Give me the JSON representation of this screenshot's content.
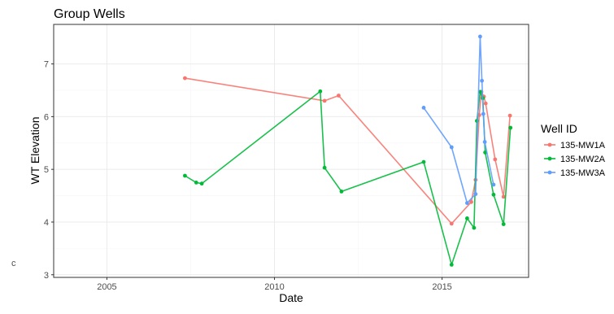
{
  "chart_data": {
    "type": "line",
    "title": "Group Wells",
    "xlabel": "Date",
    "ylabel": "WT Elevation",
    "xlim": [
      "2003-06-01",
      "2017-08-01"
    ],
    "ylim": [
      2.95,
      7.75
    ],
    "xticks": [
      "2005-01-01",
      "2010-01-01",
      "2015-01-01"
    ],
    "xtick_labels": [
      "2005",
      "2010",
      "2015"
    ],
    "yticks": [
      3,
      4,
      5,
      6,
      7
    ],
    "ytick_labels": [
      "3",
      "4",
      "5",
      "6",
      "7"
    ],
    "grid": true,
    "legend": {
      "title": "Well ID",
      "position": "right"
    },
    "series": [
      {
        "name": "135-MW1A",
        "color": "#F8766D",
        "points": [
          [
            "2007-05-01",
            6.73
          ],
          [
            "2011-07-01",
            6.3
          ],
          [
            "2011-12-01",
            6.4
          ],
          [
            "2015-04-15",
            3.97
          ],
          [
            "2015-11-15",
            4.38
          ],
          [
            "2016-01-01",
            4.8
          ],
          [
            "2016-02-10",
            6.03
          ],
          [
            "2016-03-05",
            6.47
          ],
          [
            "2016-04-01",
            6.38
          ],
          [
            "2016-04-20",
            6.25
          ],
          [
            "2016-08-01",
            5.19
          ],
          [
            "2016-11-01",
            4.48
          ],
          [
            "2017-01-10",
            6.02
          ]
        ]
      },
      {
        "name": "135-MW2A",
        "color": "#00BA38",
        "points": [
          [
            "2007-05-01",
            4.88
          ],
          [
            "2007-09-01",
            4.75
          ],
          [
            "2007-11-01",
            4.73
          ],
          [
            "2011-05-15",
            6.48
          ],
          [
            "2011-07-01",
            5.03
          ],
          [
            "2012-01-01",
            4.58
          ],
          [
            "2014-06-15",
            5.14
          ],
          [
            "2015-04-15",
            3.19
          ],
          [
            "2015-10-01",
            4.07
          ],
          [
            "2015-12-15",
            3.89
          ],
          [
            "2016-01-15",
            5.92
          ],
          [
            "2016-02-20",
            6.47
          ],
          [
            "2016-03-20",
            6.35
          ],
          [
            "2016-04-15",
            5.32
          ],
          [
            "2016-07-15",
            4.52
          ],
          [
            "2016-11-01",
            3.96
          ],
          [
            "2017-01-15",
            5.79
          ]
        ]
      },
      {
        "name": "135-MW3A",
        "color": "#619CFF",
        "points": [
          [
            "2014-06-15",
            6.17
          ],
          [
            "2015-04-15",
            5.42
          ],
          [
            "2015-10-01",
            4.36
          ],
          [
            "2016-01-01",
            4.53
          ],
          [
            "2016-02-20",
            7.52
          ],
          [
            "2016-03-10",
            6.68
          ],
          [
            "2016-03-25",
            6.05
          ],
          [
            "2016-04-10",
            5.52
          ],
          [
            "2016-07-15",
            4.71
          ]
        ]
      }
    ]
  },
  "stray_glyph": "c"
}
